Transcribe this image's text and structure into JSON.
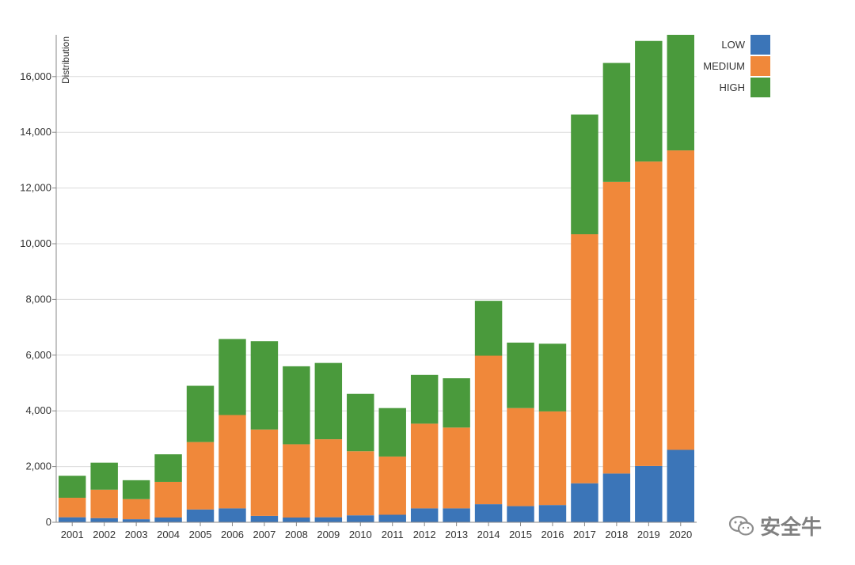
{
  "chart_data": {
    "type": "bar",
    "stacked": true,
    "categories": [
      "2001",
      "2002",
      "2003",
      "2004",
      "2005",
      "2006",
      "2007",
      "2008",
      "2009",
      "2010",
      "2011",
      "2012",
      "2013",
      "2014",
      "2015",
      "2016",
      "2017",
      "2018",
      "2019",
      "2020"
    ],
    "series": [
      {
        "name": "LOW",
        "color": "#3b75b8",
        "values": [
          180,
          150,
          110,
          170,
          460,
          500,
          230,
          170,
          180,
          250,
          270,
          500,
          500,
          650,
          580,
          620,
          1400,
          1750,
          2020,
          2600
        ]
      },
      {
        "name": "MEDIUM",
        "color": "#f0883a",
        "values": [
          700,
          1020,
          720,
          1280,
          2420,
          3350,
          3100,
          2630,
          2800,
          2300,
          2090,
          3040,
          2900,
          5330,
          3520,
          3360,
          8940,
          10470,
          10930,
          10750
        ]
      },
      {
        "name": "HIGH",
        "color": "#4a9a3c",
        "values": [
          790,
          970,
          680,
          990,
          2020,
          2730,
          3170,
          2800,
          2740,
          2060,
          1740,
          1750,
          1770,
          1970,
          2350,
          2430,
          4300,
          4270,
          4330,
          4150
        ]
      }
    ],
    "ylabel": "Distribution",
    "ylim": [
      0,
      17500
    ],
    "yticks": [
      0,
      2000,
      4000,
      6000,
      8000,
      10000,
      12000,
      14000,
      16000
    ],
    "ytick_labels": [
      "0",
      "2,000",
      "4,000",
      "6,000",
      "8,000",
      "10,000",
      "12,000",
      "14,000",
      "16,000"
    ],
    "grid": true,
    "legend": "top-right"
  },
  "watermark": {
    "text": "安全牛",
    "icon": "wechat-icon"
  }
}
